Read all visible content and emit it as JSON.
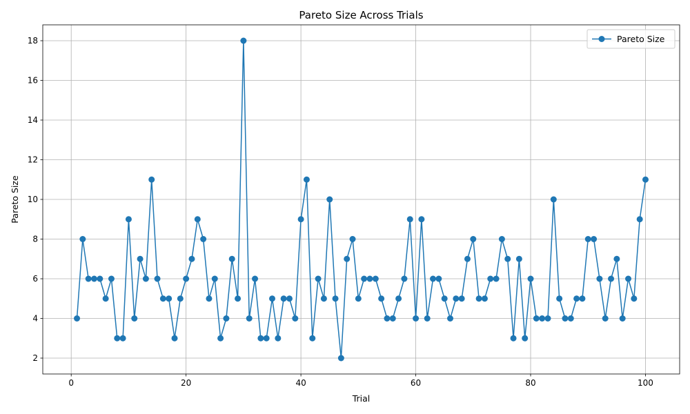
{
  "chart_data": {
    "type": "line",
    "title": "Pareto Size Across Trials",
    "xlabel": "Trial",
    "ylabel": "Pareto Size",
    "xlim": [
      -4.95,
      105.95
    ],
    "ylim": [
      1.2,
      18.8
    ],
    "xticks": [
      0,
      20,
      40,
      60,
      80,
      100
    ],
    "yticks": [
      2,
      4,
      6,
      8,
      10,
      12,
      14,
      16,
      18
    ],
    "grid": true,
    "legend_position": "top-right",
    "series": [
      {
        "name": "Pareto Size",
        "color": "#1f77b4",
        "marker": "circle",
        "x": [
          1,
          2,
          3,
          4,
          5,
          6,
          7,
          8,
          9,
          10,
          11,
          12,
          13,
          14,
          15,
          16,
          17,
          18,
          19,
          20,
          21,
          22,
          23,
          24,
          25,
          26,
          27,
          28,
          29,
          30,
          31,
          32,
          33,
          34,
          35,
          36,
          37,
          38,
          39,
          40,
          41,
          42,
          43,
          44,
          45,
          46,
          47,
          48,
          49,
          50,
          51,
          52,
          53,
          54,
          55,
          56,
          57,
          58,
          59,
          60,
          61,
          62,
          63,
          64,
          65,
          66,
          67,
          68,
          69,
          70,
          71,
          72,
          73,
          74,
          75,
          76,
          77,
          78,
          79,
          80,
          81,
          82,
          83,
          84,
          85,
          86,
          87,
          88,
          89,
          90,
          91,
          92,
          93,
          94,
          95,
          96,
          97,
          98,
          99,
          100
        ],
        "values": [
          4,
          8,
          6,
          6,
          6,
          5,
          6,
          3,
          3,
          9,
          4,
          7,
          6,
          11,
          6,
          5,
          5,
          3,
          5,
          6,
          7,
          9,
          8,
          5,
          6,
          3,
          4,
          7,
          5,
          18,
          4,
          6,
          3,
          3,
          5,
          3,
          5,
          5,
          4,
          9,
          11,
          3,
          6,
          5,
          10,
          5,
          2,
          7,
          8,
          5,
          6,
          6,
          6,
          5,
          4,
          4,
          5,
          6,
          9,
          4,
          9,
          4,
          6,
          6,
          5,
          4,
          5,
          5,
          7,
          8,
          5,
          5,
          6,
          6,
          8,
          7,
          3,
          7,
          3,
          6,
          4,
          4,
          4,
          10,
          5,
          4,
          4,
          5,
          5,
          8,
          8,
          6,
          4,
          6,
          7,
          4,
          6,
          5,
          9,
          11
        ]
      }
    ]
  }
}
